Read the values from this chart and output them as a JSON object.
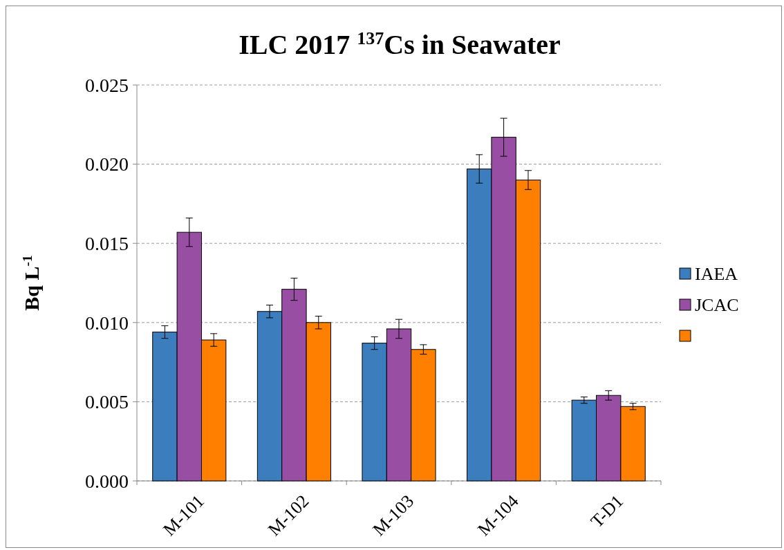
{
  "chart_data": {
    "type": "bar",
    "title": "ILC 2017 $^{137}$Cs in Seawater",
    "ylabel": "Bq L$^{-1}$",
    "categories": [
      "M-101",
      "M-102",
      "M-103",
      "M-104",
      "T-D1"
    ],
    "series": [
      {
        "name": "IAEA",
        "color": "#3b7dbd",
        "values": [
          0.0094,
          0.0107,
          0.0087,
          0.0197,
          0.0051
        ],
        "errors": [
          0.0004,
          0.0004,
          0.0004,
          0.0009,
          0.0002
        ]
      },
      {
        "name": "JCAC",
        "color": "#984ea3",
        "values": [
          0.0157,
          0.0121,
          0.0096,
          0.0217,
          0.0054
        ],
        "errors": [
          0.0009,
          0.0007,
          0.0006,
          0.0012,
          0.0003
        ]
      },
      {
        "color": "#ff8000",
        "values": [
          0.0089,
          0.01,
          0.0083,
          0.019,
          0.0047
        ],
        "errors": [
          0.0004,
          0.0004,
          0.0003,
          0.0006,
          0.0002
        ]
      }
    ],
    "ylim": [
      0,
      0.025
    ],
    "yticks": [
      {
        "value": 0,
        "label": "0.000"
      },
      {
        "value": 0.005,
        "label": "0.005"
      },
      {
        "value": 0.01,
        "label": "0.010"
      },
      {
        "value": 0.015,
        "label": "0.015"
      },
      {
        "value": 0.02,
        "label": "0.020"
      },
      {
        "value": 0.025,
        "label": "0.025"
      }
    ],
    "grid": "y",
    "legend": "right"
  }
}
